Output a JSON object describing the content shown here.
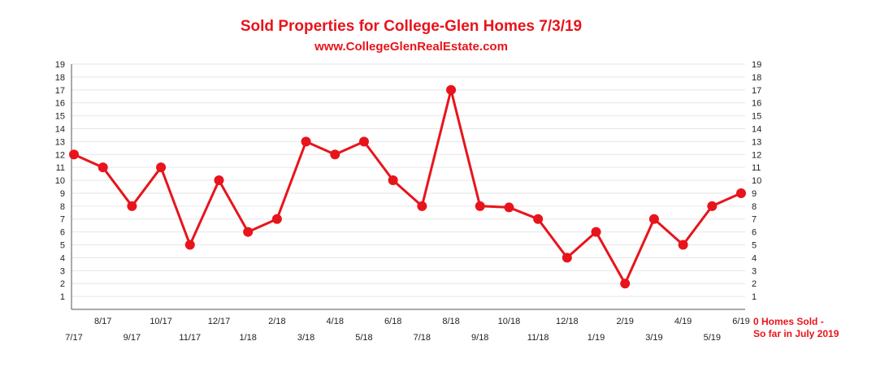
{
  "chart_data": {
    "type": "line",
    "title": "Sold Properties for College-Glen Homes 7/3/19",
    "subtitle": "www.CollegeGlenRealEstate.com",
    "categories": [
      "7/17",
      "8/17",
      "9/17",
      "10/17",
      "11/17",
      "12/17",
      "1/18",
      "2/18",
      "3/18",
      "4/18",
      "5/18",
      "6/18",
      "7/18",
      "8/18",
      "9/18",
      "10/18",
      "11/18",
      "12/18",
      "1/19",
      "2/19",
      "3/19",
      "4/19",
      "5/19",
      "6/19"
    ],
    "series": [
      {
        "values": [
          12,
          11,
          8,
          11,
          5,
          10,
          6,
          7,
          13,
          12,
          13,
          10,
          8,
          17,
          8,
          7.9,
          7,
          4,
          6,
          2,
          7,
          5,
          8,
          9
        ]
      }
    ],
    "y_ticks": [
      1,
      2,
      3,
      4,
      5,
      6,
      7,
      8,
      9,
      10,
      11,
      12,
      13,
      14,
      15,
      16,
      17,
      18,
      19
    ],
    "ylim": [
      0,
      19
    ],
    "grid": true,
    "color": "#e8141b",
    "annotation": [
      "0 Homes Sold -",
      "So far in July 2019"
    ]
  }
}
